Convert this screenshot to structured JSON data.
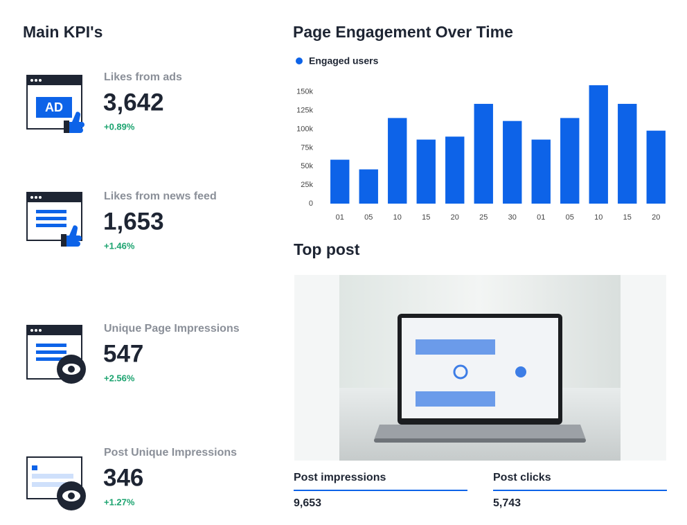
{
  "kpi": {
    "title": "Main KPI's",
    "items": [
      {
        "label": "Likes from ads",
        "value": "3,642",
        "change": "+0.89%"
      },
      {
        "label": "Likes from news feed",
        "value": "1,653",
        "change": "+1.46%"
      },
      {
        "label": "Unique Page Impressions",
        "value": "547",
        "change": "+2.56%"
      },
      {
        "label": "Post Unique Impressions",
        "value": "346",
        "change": "+1.27%"
      }
    ]
  },
  "chart_data": {
    "type": "bar",
    "title": "Page Engagement Over Time",
    "categories": [
      "01",
      "05",
      "10",
      "15",
      "20",
      "25",
      "30",
      "01",
      "05",
      "10",
      "15",
      "20"
    ],
    "series": [
      {
        "name": "Engaged users",
        "color": "#0d63e8",
        "values": [
          59000,
          46000,
          115000,
          86000,
          90000,
          134000,
          111000,
          86000,
          115000,
          159000,
          134000,
          98000
        ]
      }
    ],
    "ylim": [
      0,
      160000
    ],
    "yticks": [
      0,
      {
        "value": 25000,
        "label": "25k"
      },
      {
        "value": 50000,
        "label": "50k"
      },
      {
        "value": 75000,
        "label": "75k"
      },
      {
        "value": 100000,
        "label": "100k"
      },
      {
        "value": 125000,
        "label": "125k"
      },
      {
        "value": 150000,
        "label": "150k"
      }
    ],
    "grid": false
  },
  "top_post": {
    "title": "Top post",
    "metrics": [
      {
        "label": "Post impressions",
        "value": "9,653"
      },
      {
        "label": "Post clicks",
        "value": "5,743"
      }
    ]
  }
}
